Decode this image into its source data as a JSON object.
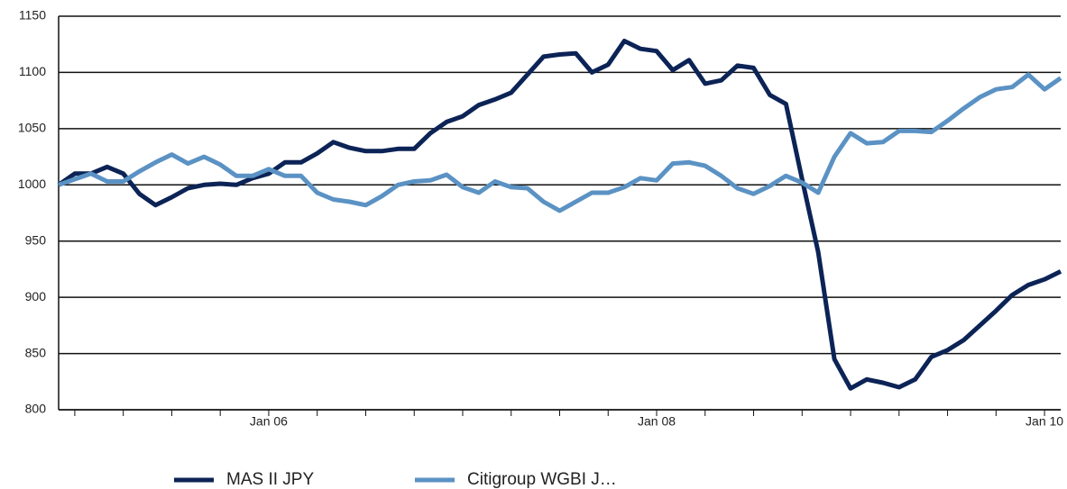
{
  "chart_data": {
    "type": "line",
    "categories": [
      null,
      null,
      null,
      null,
      null,
      null,
      null,
      null,
      null,
      null,
      null,
      null,
      null,
      "Jan 06",
      null,
      null,
      null,
      null,
      null,
      null,
      null,
      null,
      null,
      null,
      null,
      null,
      null,
      null,
      null,
      null,
      null,
      null,
      null,
      null,
      null,
      null,
      null,
      "Jan 08",
      null,
      null,
      null,
      null,
      null,
      null,
      null,
      null,
      null,
      null,
      null,
      null,
      null,
      null,
      null,
      null,
      null,
      null,
      null,
      null,
      null,
      null,
      null,
      "Jan 10",
      null
    ],
    "series": [
      {
        "name": "MAS II JPY",
        "color": "#0c2356",
        "values": [
          1000,
          1010,
          1010,
          1016,
          1010,
          992,
          982,
          989,
          997,
          1000,
          1001,
          1000,
          1006,
          1010,
          1020,
          1020,
          1028,
          1038,
          1033,
          1030,
          1030,
          1032,
          1032,
          1046,
          1056,
          1061,
          1071,
          1076,
          1082,
          1098,
          1114,
          1116,
          1117,
          1100,
          1107,
          1128,
          1121,
          1119,
          1102,
          1111,
          1090,
          1093,
          1106,
          1104,
          1080,
          1072,
          1005,
          940,
          845,
          819,
          827,
          824,
          820,
          827,
          847,
          853,
          862,
          875,
          888,
          902,
          911,
          916,
          923
        ]
      },
      {
        "name": "Citigroup  WGBI J…",
        "color": "#5b92c4",
        "values": [
          1000,
          1005,
          1010,
          1003,
          1003,
          1012,
          1020,
          1027,
          1019,
          1025,
          1018,
          1008,
          1008,
          1014,
          1008,
          1008,
          993,
          987,
          985,
          982,
          990,
          1000,
          1003,
          1004,
          1009,
          998,
          993,
          1003,
          998,
          997,
          985,
          977,
          985,
          993,
          993,
          998,
          1006,
          1004,
          1019,
          1020,
          1017,
          1008,
          997,
          992,
          999,
          1008,
          1002,
          993,
          1025,
          1046,
          1037,
          1038,
          1048,
          1048,
          1047,
          1057,
          1068,
          1078,
          1085,
          1087,
          1098,
          1085,
          1095
        ]
      }
    ],
    "ylim": [
      800,
      1150
    ],
    "yticks": [
      800,
      850,
      900,
      950,
      1000,
      1050,
      1100,
      1150
    ],
    "grid": true
  }
}
